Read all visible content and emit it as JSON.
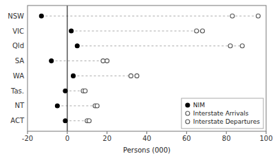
{
  "chart_data": {
    "type": "dot",
    "orientation": "horizontal",
    "x_label": "Persons (000)",
    "categories": [
      "NSW",
      "VIC",
      "Qld",
      "SA",
      "WA",
      "Tas.",
      "NT",
      "ACT"
    ],
    "series": [
      {
        "name": "NIM",
        "color": "#000000",
        "marker": "circle",
        "values": [
          -13,
          2,
          5,
          -8,
          3,
          -1,
          -5,
          -1
        ]
      },
      {
        "name": "Interstate Arrivals",
        "color": "#555555",
        "marker": "open-circle",
        "values": [
          83,
          65,
          82,
          18,
          32,
          8,
          14,
          10
        ]
      },
      {
        "name": "Interstate Departures",
        "color": "#555555",
        "marker": "open-circle",
        "values": [
          96,
          68,
          88,
          20,
          35,
          9,
          15,
          11
        ]
      }
    ],
    "xlim": [
      -20,
      100
    ],
    "xticks": [
      -20,
      0,
      20,
      40,
      60,
      80,
      100
    ],
    "grid": false,
    "legend": "lower right",
    "line_style": "dashed"
  }
}
